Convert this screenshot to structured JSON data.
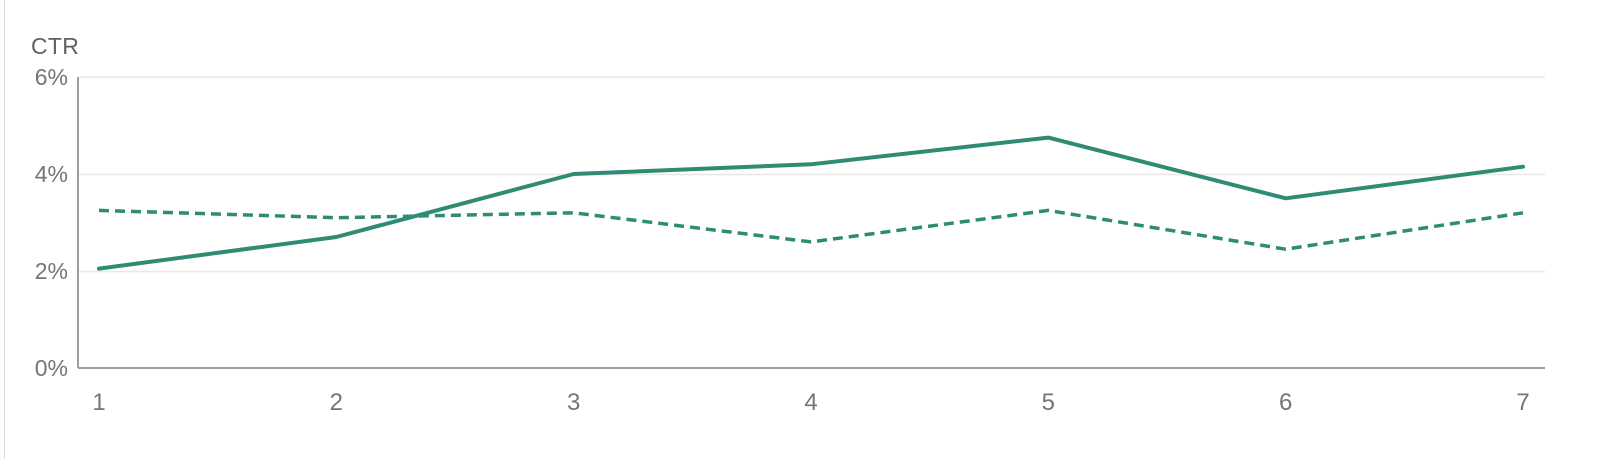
{
  "chart_data": {
    "type": "line",
    "title": "",
    "ylabel": "CTR",
    "xlabel": "",
    "categories": [
      "1",
      "2",
      "3",
      "4",
      "5",
      "6",
      "7"
    ],
    "y_ticks": [
      "6%",
      "4%",
      "2%",
      "0%"
    ],
    "ylim": [
      0,
      6
    ],
    "grid": true,
    "legend_position": "none",
    "series": [
      {
        "style": "solid",
        "values": [
          2.05,
          2.7,
          4.0,
          4.2,
          4.75,
          3.5,
          4.15
        ]
      },
      {
        "style": "dashed",
        "values": [
          3.25,
          3.1,
          3.2,
          2.6,
          3.25,
          2.45,
          3.2
        ]
      }
    ],
    "colors": {
      "line": "#2e8b74",
      "grid": "#e8e8e8",
      "axis": "#9e9e9e",
      "tick_text": "#757575",
      "axis_title_text": "#616161"
    }
  }
}
